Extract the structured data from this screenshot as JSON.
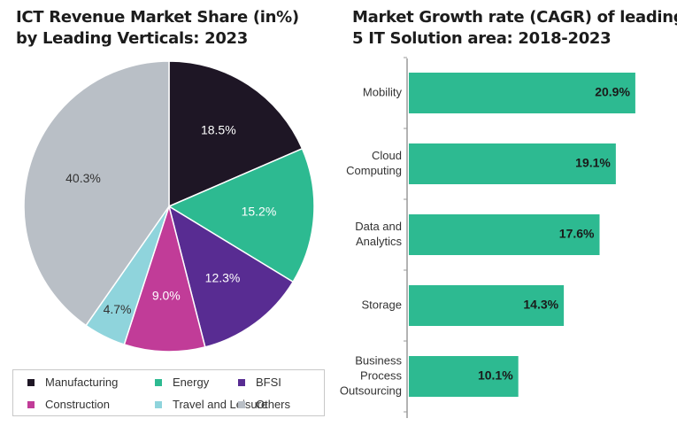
{
  "pie_chart": {
    "title_line1": "ICT Revenue Market Share (in%)",
    "title_line2": "by Leading Verticals: 2023"
  },
  "bar_chart": {
    "title_line1": "Market Growth rate (CAGR) of leading",
    "title_line2": "5 IT Solution area: 2018-2023"
  },
  "chart_data": [
    {
      "type": "pie",
      "title": "ICT Revenue Market Share (in%) by Leading Verticals: 2023",
      "slices": [
        {
          "label": "Manufacturing",
          "value": 18.5,
          "display": "18.5%",
          "color": "#1e1625",
          "text_color": "#ffffff"
        },
        {
          "label": "Energy",
          "value": 15.2,
          "display": "15.2%",
          "color": "#2dba91",
          "text_color": "#ffffff"
        },
        {
          "label": "BFSI",
          "value": 12.3,
          "display": "12.3%",
          "color": "#582c92",
          "text_color": "#ffffff"
        },
        {
          "label": "Construction",
          "value": 9.0,
          "display": "9.0%",
          "color": "#c13c98",
          "text_color": "#ffffff"
        },
        {
          "label": "Travel and Leisure",
          "value": 4.7,
          "display": "4.7%",
          "color": "#8fd4dc",
          "text_color": "#333333"
        },
        {
          "label": "Others",
          "value": 40.3,
          "display": "40.3%",
          "color": "#b9bfc6",
          "text_color": "#333333"
        }
      ],
      "legend_placement": "bottom"
    },
    {
      "type": "bar",
      "orientation": "horizontal",
      "title": "Market Growth rate (CAGR) of leading 5 IT Solution area: 2018-2023",
      "categories": [
        [
          "Mobility"
        ],
        [
          "Cloud",
          "Computing"
        ],
        [
          "Data and",
          "Analytics"
        ],
        [
          "Storage"
        ],
        [
          "Business",
          "Process",
          "Outsourcing"
        ]
      ],
      "values": [
        20.9,
        19.1,
        17.6,
        14.3,
        10.1
      ],
      "value_labels": [
        "20.9%",
        "19.1%",
        "17.6%",
        "14.3%",
        "10.1%"
      ],
      "bar_color": "#2dba91",
      "xlim": [
        0,
        24.5
      ]
    }
  ]
}
